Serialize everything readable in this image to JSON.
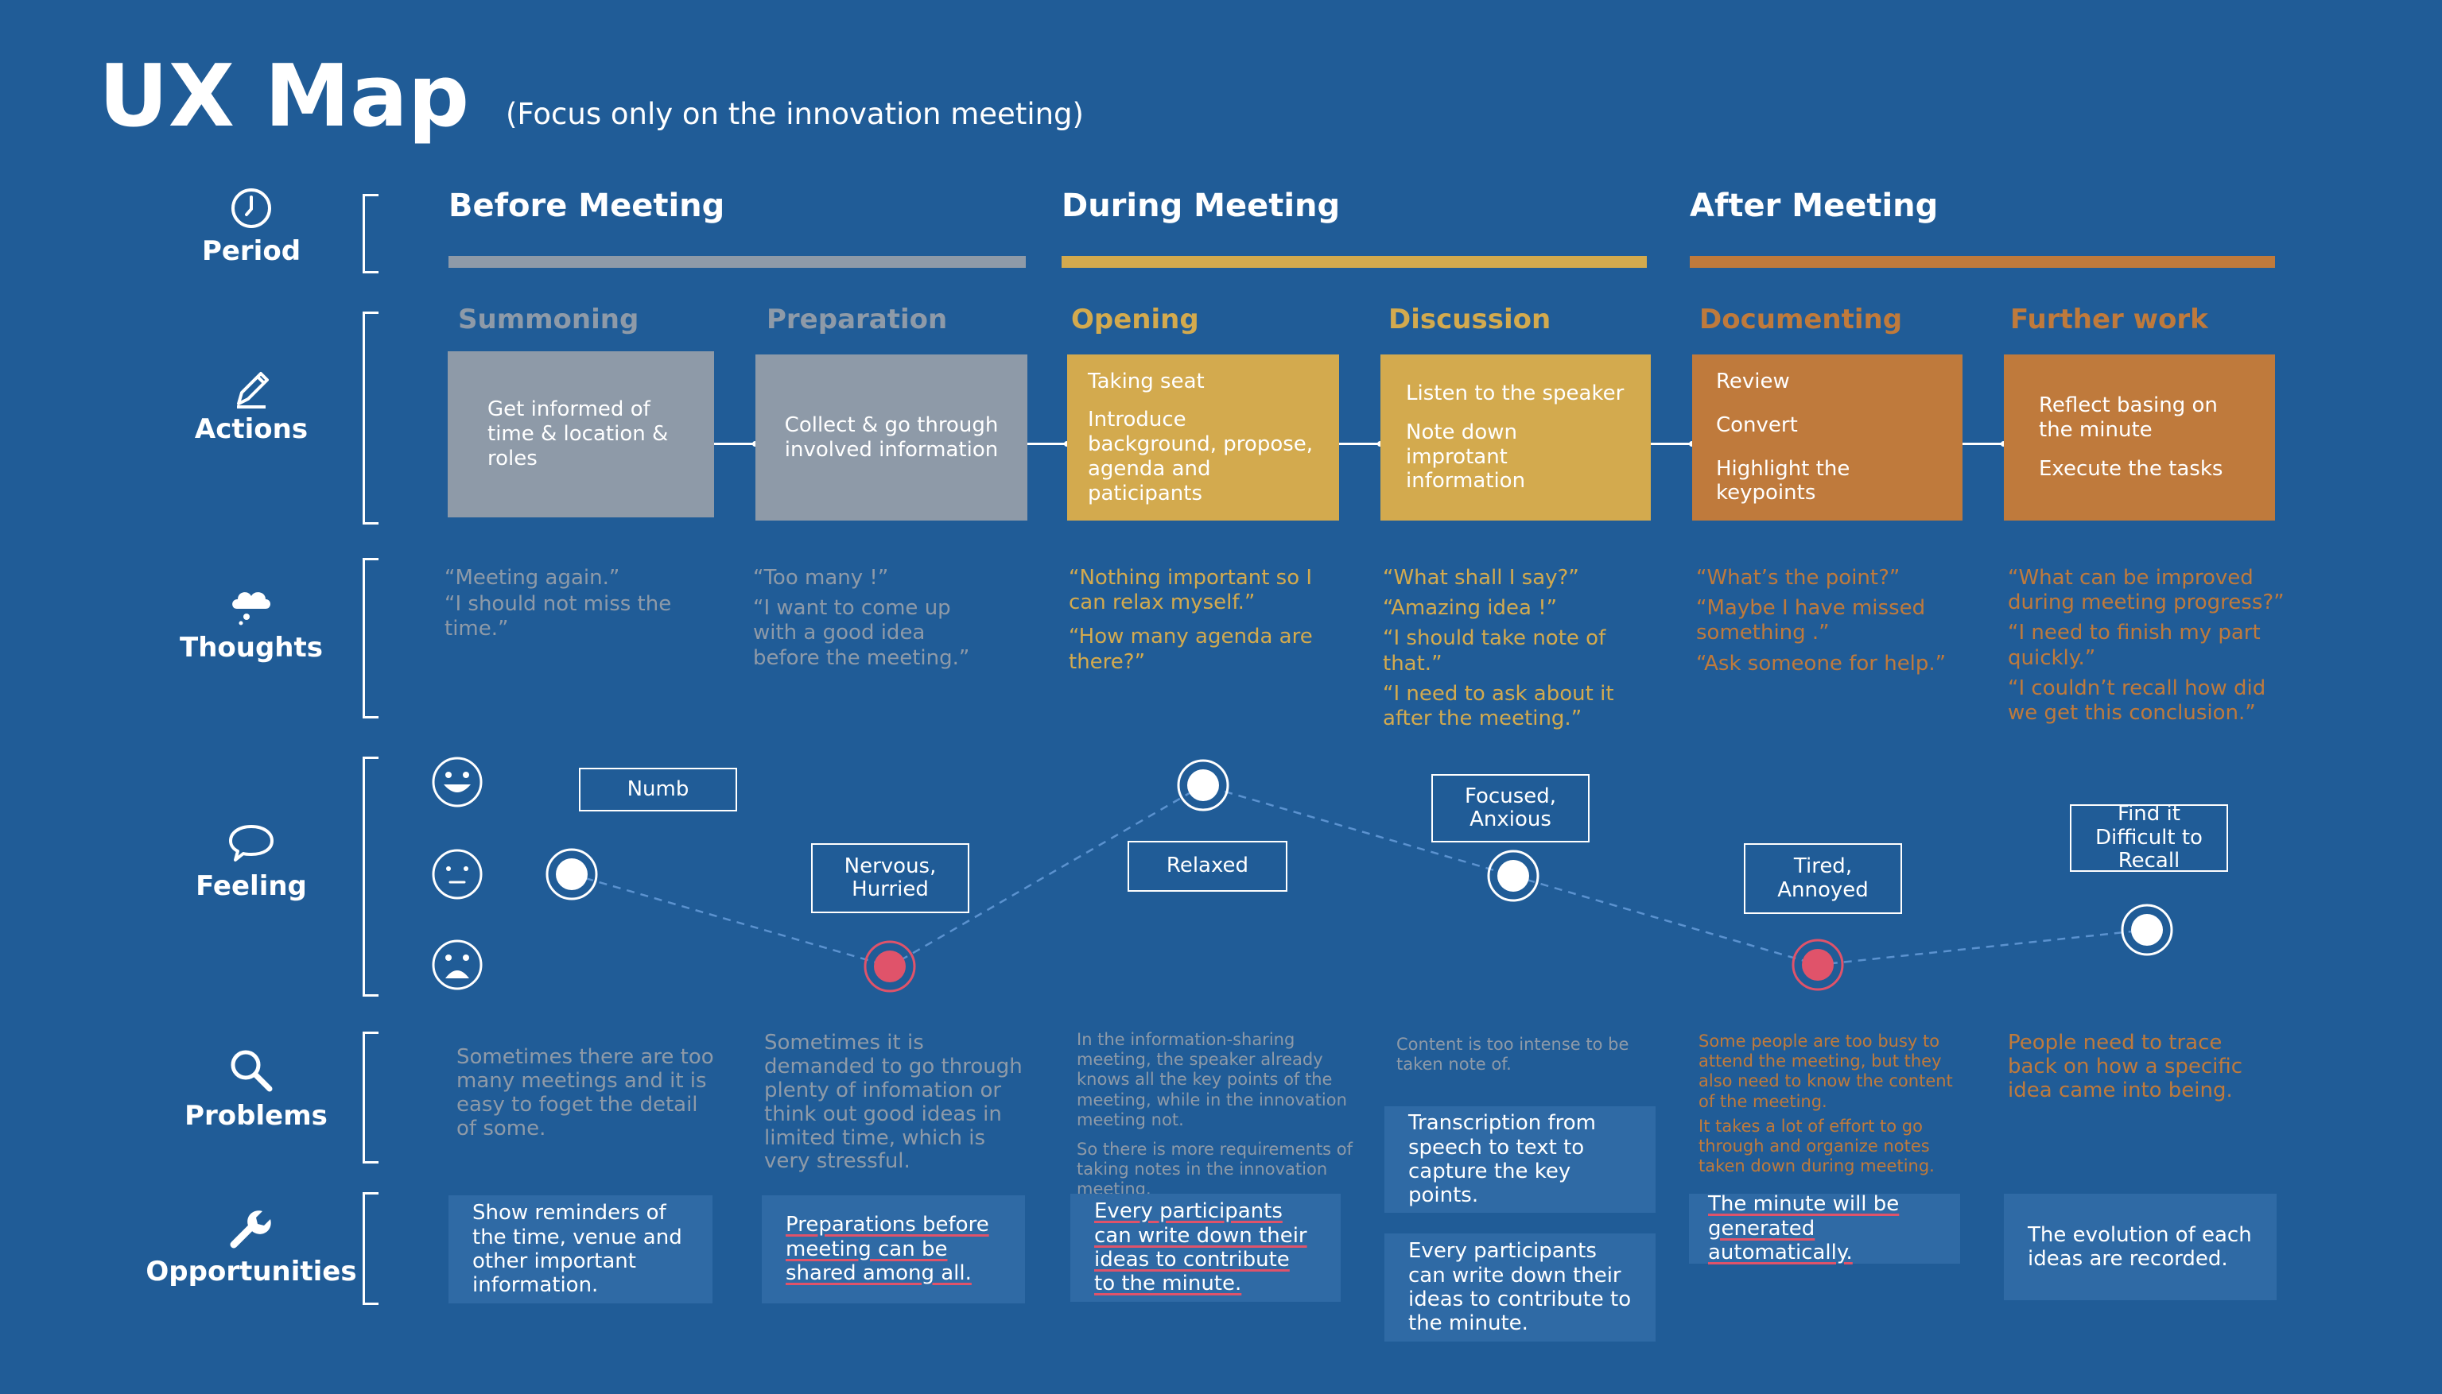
{
  "header": {
    "title": "UX Map",
    "subtitle": "(Focus only on the innovation meeting)"
  },
  "row_labels": {
    "period": "Period",
    "actions": "Actions",
    "thoughts": "Thoughts",
    "feeling": "Feeling",
    "problems": "Problems",
    "opportunities": "Opportunities"
  },
  "periods": [
    {
      "label": "Before Meeting",
      "color": "#8e9aa8"
    },
    {
      "label": "During Meeting",
      "color": "#d3aa4e"
    },
    {
      "label": "After Meeting",
      "color": "#bf7a3c"
    }
  ],
  "stages": [
    {
      "title": "Summoning",
      "color": "#8e9aa8",
      "actions": [
        "Get informed of time & location & roles"
      ],
      "thoughts": [
        "“Meeting again.”",
        "“I should not miss the time.”"
      ],
      "feeling_label": "Numb",
      "feeling_level": "neutral",
      "problems": [
        "Sometimes there are too many meetings and it is easy to foget the detail of some."
      ],
      "opportunities": [
        "Show reminders of the time, venue and other important information."
      ]
    },
    {
      "title": "Preparation",
      "color": "#8e9aa8",
      "actions": [
        "Collect & go through involved information"
      ],
      "thoughts": [
        "“Too many !”",
        "“I want to come up with a good idea before the meeting.”"
      ],
      "feeling_label": "Nervous, Hurried",
      "feeling_level": "negative",
      "problems": [
        "Sometimes it is demanded to go through plenty of infomation or think out good ideas in limited time, which is very stressful."
      ],
      "opportunities": [
        "Preparations before meeting can be shared among all."
      ]
    },
    {
      "title": "Opening",
      "color": "#d3aa4e",
      "actions": [
        "Taking seat",
        "Introduce background, propose, agenda and paticipants"
      ],
      "thoughts": [
        "“Nothing important so I can relax myself.”",
        "“How many agenda are there?”"
      ],
      "feeling_label": "Relaxed",
      "feeling_level": "positive",
      "problems": [
        "In the information-sharing meeting, the speaker already knows all the key points of the meeting, while in the innovation meeting not.",
        "So there is more requirements of taking notes in the innovation meeting."
      ],
      "opportunities": [
        "Every participants can write down their ideas to contribute to the minute."
      ]
    },
    {
      "title": "Discussion",
      "color": "#d3aa4e",
      "actions": [
        "Listen to the speaker",
        "Note down improtant information"
      ],
      "thoughts": [
        "“What shall I say?”",
        "“Amazing idea !”",
        "“I should take note of that.”",
        "“I need to ask about it after the meeting.”"
      ],
      "feeling_label": "Focused, Anxious",
      "feeling_level": "neutral",
      "problems": [
        "Content is too intense to be taken note of."
      ],
      "opportunities": [
        "Transcription from speech to text to capture the key points.",
        "Every participants can write down their ideas to contribute to the minute."
      ]
    },
    {
      "title": "Documenting",
      "color": "#bf7a3c",
      "actions": [
        "Review",
        "Convert",
        "Highlight the keypoints"
      ],
      "thoughts": [
        "“What’s the point?”",
        "“Maybe I have missed something .”",
        "“Ask someone for help.”"
      ],
      "feeling_label": "Tired, Annoyed",
      "feeling_level": "negative",
      "problems": [
        "Some people are too busy to attend the meeting, but they also need to know the content of the meeting.",
        "It takes a lot of effort to go through and organize notes taken down during meeting."
      ],
      "opportunities": [
        "The minute will be generated automatically."
      ]
    },
    {
      "title": "Further work",
      "color": "#bf7a3c",
      "actions": [
        "Reflect basing on the minute",
        "Execute the tasks"
      ],
      "thoughts": [
        "“What can be improved during meeting progress?”",
        "“I need to finish my part quickly.”",
        "“I couldn’t recall how did we get this conclusion.”"
      ],
      "feeling_label": "Find it Difficult to Recall",
      "feeling_level": "between-positive-neutral",
      "problems": [
        "People need to trace back on how a specific idea came into being."
      ],
      "opportunities": [
        "The evolution of each ideas are recorded."
      ]
    }
  ],
  "colors": {
    "background": "#205c97",
    "gray": "#8e9aa8",
    "gold": "#d3aa4e",
    "orange": "#bf7a3c",
    "negative_dot": "#e0536a",
    "opportunity_box": "#2f6aa5"
  },
  "icons": [
    "clock-icon",
    "pencil-icon",
    "cloud-icon",
    "speech-bubble-icon",
    "magnifier-icon",
    "wrench-icon",
    "happy-face-icon",
    "neutral-face-icon",
    "sad-face-icon"
  ]
}
